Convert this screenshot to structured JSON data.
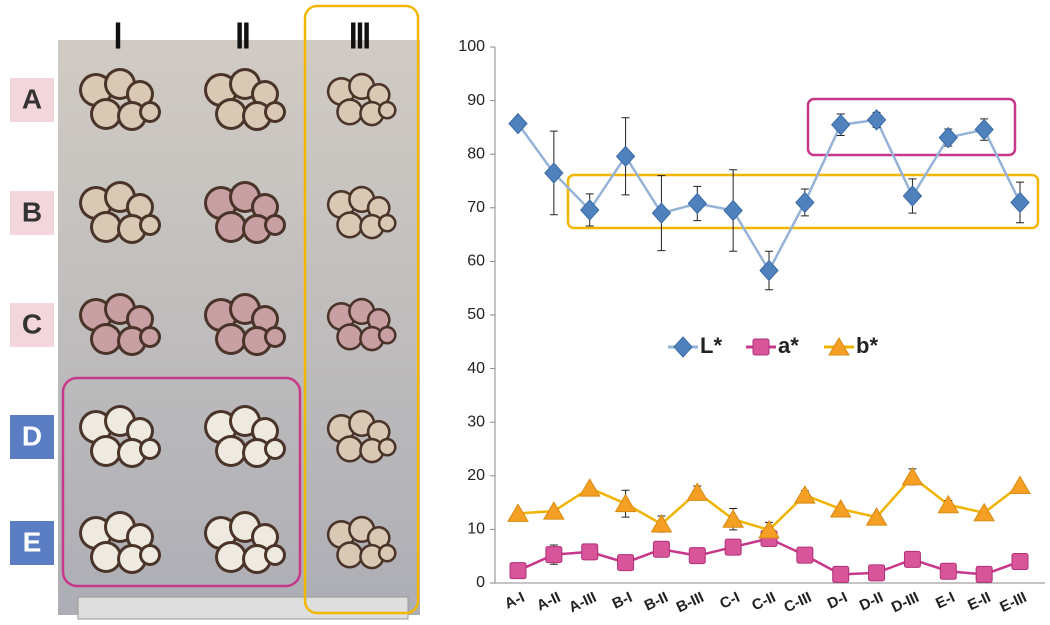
{
  "photo": {
    "columns": [
      "Ⅰ",
      "Ⅱ",
      "Ⅲ"
    ],
    "rows": [
      "A",
      "B",
      "C",
      "D",
      "E"
    ]
  },
  "chart_data": {
    "type": "line",
    "categories": [
      "A-I",
      "A-II",
      "A-III",
      "B-I",
      "B-II",
      "B-III",
      "C-I",
      "C-II",
      "C-III",
      "D-I",
      "D-II",
      "D-III",
      "E-I",
      "E-II",
      "E-III"
    ],
    "series": [
      {
        "name": "L*",
        "color": "#4f81bd",
        "line_color": "#95b3d7",
        "marker": "diamond",
        "values": [
          85.7,
          76.5,
          69.6,
          79.6,
          69.0,
          70.8,
          69.5,
          58.3,
          71.0,
          85.5,
          86.4,
          72.2,
          83.1,
          84.6,
          71.0
        ],
        "errors": [
          0.5,
          7.8,
          3.0,
          7.2,
          7.0,
          3.2,
          7.6,
          3.6,
          2.5,
          2.0,
          1.4,
          3.2,
          1.6,
          2.0,
          3.8
        ]
      },
      {
        "name": "a*",
        "color": "#d9559a",
        "line_color": "#c8388a",
        "marker": "square",
        "values": [
          2.3,
          5.3,
          5.8,
          3.8,
          6.3,
          5.1,
          6.7,
          8.3,
          5.2,
          1.6,
          1.9,
          4.4,
          2.2,
          1.6,
          4.0
        ],
        "errors": [
          0.3,
          1.8,
          0.8,
          0.5,
          0.8,
          0.5,
          1.0,
          1.0,
          0.5,
          0.3,
          0.3,
          0.5,
          0.3,
          0.3,
          0.4
        ]
      },
      {
        "name": "b*",
        "color": "#f5a024",
        "line_color": "#f0b400",
        "marker": "triangle",
        "values": [
          13.0,
          13.4,
          17.7,
          14.8,
          11.0,
          16.9,
          11.9,
          9.9,
          16.4,
          13.8,
          12.3,
          19.8,
          14.6,
          13.1,
          18.2
        ],
        "errors": [
          0.5,
          0.5,
          0.5,
          2.5,
          1.5,
          1.2,
          2.0,
          1.4,
          0.8,
          0.5,
          0.5,
          1.5,
          0.8,
          0.5,
          0.5
        ]
      }
    ],
    "ylim": [
      0,
      100
    ],
    "yticks": [
      0,
      10,
      20,
      30,
      40,
      50,
      60,
      70,
      80,
      90,
      100
    ],
    "grid": false,
    "legend": "center"
  }
}
